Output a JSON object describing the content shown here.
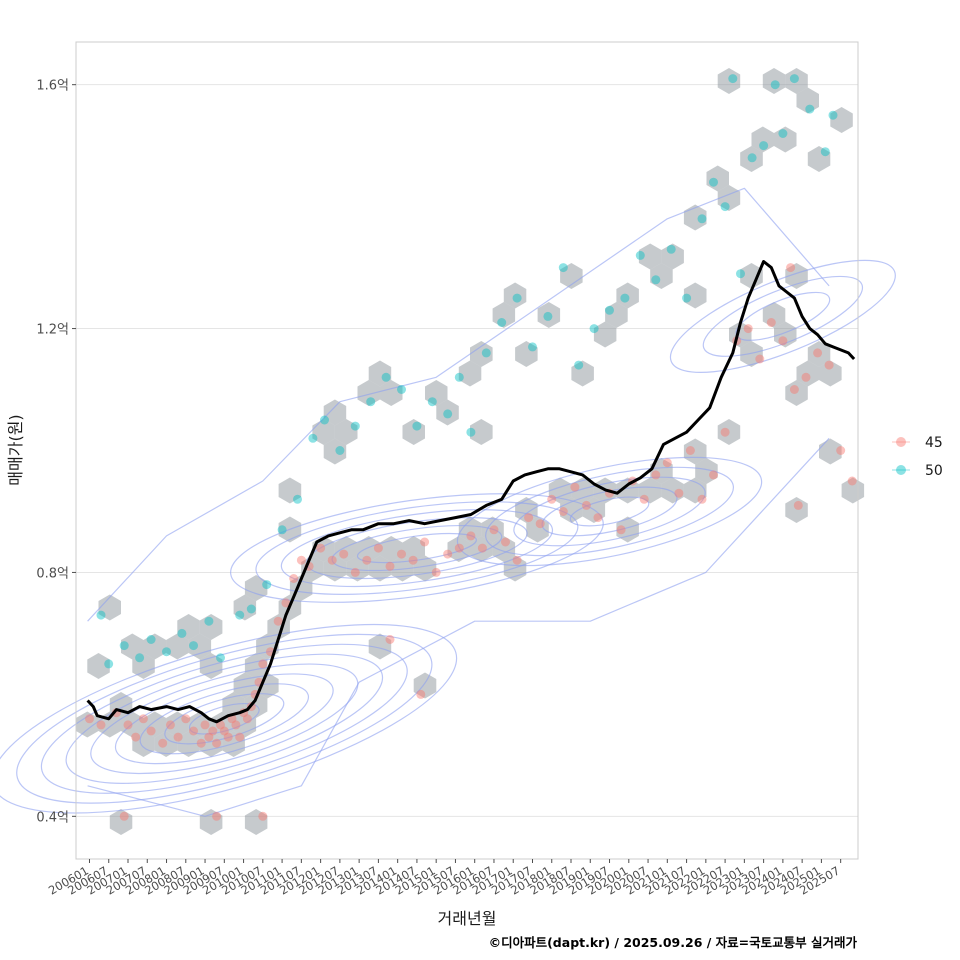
{
  "chart_data": {
    "type": "scatter",
    "overlays": [
      "hexbin",
      "density-contour",
      "moving-median-line"
    ],
    "xlabel": "거래년월",
    "ylabel": "매매가(원)",
    "ylim": [
      0.33,
      1.67
    ],
    "y_ticks": [
      {
        "value": 0.4,
        "label": "0.4억"
      },
      {
        "value": 0.8,
        "label": "0.8억"
      },
      {
        "value": 1.2,
        "label": "1.2억"
      },
      {
        "value": 1.6,
        "label": "1.6억"
      }
    ],
    "x_ticks": [
      "200601",
      "200607",
      "200701",
      "200707",
      "200801",
      "200807",
      "200901",
      "200907",
      "201001",
      "201007",
      "201101",
      "201107",
      "201201",
      "201207",
      "201301",
      "201307",
      "201401",
      "201407",
      "201501",
      "201507",
      "201601",
      "201607",
      "201701",
      "201707",
      "201801",
      "201807",
      "201901",
      "201907",
      "202001",
      "202007",
      "202101",
      "202107",
      "202201",
      "202207",
      "202301",
      "202307",
      "202401",
      "202407",
      "202501",
      "202507"
    ],
    "x_range_years": [
      2005.65,
      2025.95
    ],
    "legend": {
      "position": "right",
      "entries": [
        {
          "label": "45",
          "color": "#F8766D"
        },
        {
          "label": "50",
          "color": "#00BFC4"
        }
      ]
    },
    "colors": {
      "series_45": "#F8766D",
      "series_50": "#00BFC4",
      "hex_fill": "#8E959C",
      "contour": "#8EA0F0",
      "trend_line": "#000000",
      "grid": "#E5E5E5",
      "panel_border": "#CCCCCC"
    },
    "series": [
      {
        "name": "45",
        "points": [
          [
            2006.0,
            0.56
          ],
          [
            2006.3,
            0.55
          ],
          [
            2006.7,
            0.57
          ],
          [
            2007.0,
            0.55
          ],
          [
            2007.2,
            0.53
          ],
          [
            2007.4,
            0.56
          ],
          [
            2007.6,
            0.54
          ],
          [
            2007.9,
            0.52
          ],
          [
            2008.1,
            0.55
          ],
          [
            2008.3,
            0.53
          ],
          [
            2008.5,
            0.56
          ],
          [
            2008.7,
            0.54
          ],
          [
            2008.9,
            0.52
          ],
          [
            2009.0,
            0.55
          ],
          [
            2009.1,
            0.53
          ],
          [
            2009.2,
            0.54
          ],
          [
            2009.3,
            0.52
          ],
          [
            2009.4,
            0.55
          ],
          [
            2009.5,
            0.54
          ],
          [
            2009.6,
            0.53
          ],
          [
            2009.7,
            0.56
          ],
          [
            2009.8,
            0.55
          ],
          [
            2009.9,
            0.53
          ],
          [
            2010.0,
            0.57
          ],
          [
            2010.1,
            0.56
          ],
          [
            2010.2,
            0.58
          ],
          [
            2010.3,
            0.6
          ],
          [
            2010.4,
            0.62
          ],
          [
            2010.5,
            0.65
          ],
          [
            2010.7,
            0.67
          ],
          [
            2010.9,
            0.72
          ],
          [
            2011.1,
            0.75
          ],
          [
            2011.3,
            0.79
          ],
          [
            2011.5,
            0.82
          ],
          [
            2011.7,
            0.81
          ],
          [
            2012.0,
            0.84
          ],
          [
            2012.3,
            0.82
          ],
          [
            2012.6,
            0.83
          ],
          [
            2012.9,
            0.8
          ],
          [
            2013.2,
            0.82
          ],
          [
            2013.5,
            0.84
          ],
          [
            2013.8,
            0.81
          ],
          [
            2014.1,
            0.83
          ],
          [
            2014.4,
            0.82
          ],
          [
            2014.7,
            0.85
          ],
          [
            2015.0,
            0.8
          ],
          [
            2015.3,
            0.83
          ],
          [
            2015.6,
            0.84
          ],
          [
            2015.9,
            0.86
          ],
          [
            2016.2,
            0.84
          ],
          [
            2016.5,
            0.87
          ],
          [
            2016.8,
            0.85
          ],
          [
            2017.1,
            0.82
          ],
          [
            2017.4,
            0.89
          ],
          [
            2017.7,
            0.88
          ],
          [
            2018.0,
            0.92
          ],
          [
            2018.3,
            0.9
          ],
          [
            2018.6,
            0.94
          ],
          [
            2018.9,
            0.91
          ],
          [
            2019.2,
            0.89
          ],
          [
            2019.5,
            0.93
          ],
          [
            2019.8,
            0.87
          ],
          [
            2020.1,
            0.95
          ],
          [
            2020.4,
            0.92
          ],
          [
            2020.7,
            0.96
          ],
          [
            2021.0,
            0.98
          ],
          [
            2021.3,
            0.93
          ],
          [
            2021.6,
            1.0
          ],
          [
            2021.9,
            0.92
          ],
          [
            2022.2,
            0.96
          ],
          [
            2022.5,
            1.03
          ],
          [
            2022.8,
            1.18
          ],
          [
            2023.1,
            1.2
          ],
          [
            2023.4,
            1.15
          ],
          [
            2023.7,
            1.21
          ],
          [
            2024.0,
            1.18
          ],
          [
            2024.3,
            1.1
          ],
          [
            2024.6,
            1.12
          ],
          [
            2024.9,
            1.16
          ],
          [
            2025.2,
            1.14
          ],
          [
            2025.5,
            1.0
          ],
          [
            2025.8,
            0.95
          ],
          [
            2006.9,
            0.4
          ],
          [
            2009.3,
            0.4
          ],
          [
            2010.5,
            0.4
          ],
          [
            2013.8,
            0.69
          ],
          [
            2014.6,
            0.6
          ],
          [
            2024.4,
            0.91
          ],
          [
            2024.2,
            1.3
          ]
        ]
      },
      {
        "name": "50",
        "points": [
          [
            2006.3,
            0.73
          ],
          [
            2006.5,
            0.65
          ],
          [
            2006.9,
            0.68
          ],
          [
            2007.3,
            0.66
          ],
          [
            2007.6,
            0.69
          ],
          [
            2008.0,
            0.67
          ],
          [
            2008.4,
            0.7
          ],
          [
            2008.7,
            0.68
          ],
          [
            2009.1,
            0.72
          ],
          [
            2009.4,
            0.66
          ],
          [
            2009.9,
            0.73
          ],
          [
            2010.2,
            0.74
          ],
          [
            2010.6,
            0.78
          ],
          [
            2011.0,
            0.87
          ],
          [
            2011.4,
            0.92
          ],
          [
            2011.8,
            1.02
          ],
          [
            2012.1,
            1.05
          ],
          [
            2012.5,
            1.0
          ],
          [
            2012.9,
            1.04
          ],
          [
            2013.3,
            1.08
          ],
          [
            2013.7,
            1.12
          ],
          [
            2014.1,
            1.1
          ],
          [
            2014.5,
            1.04
          ],
          [
            2014.9,
            1.08
          ],
          [
            2015.3,
            1.06
          ],
          [
            2015.6,
            1.12
          ],
          [
            2015.9,
            1.03
          ],
          [
            2016.3,
            1.16
          ],
          [
            2016.7,
            1.21
          ],
          [
            2017.1,
            1.25
          ],
          [
            2017.5,
            1.17
          ],
          [
            2017.9,
            1.22
          ],
          [
            2018.3,
            1.3
          ],
          [
            2018.7,
            1.14
          ],
          [
            2019.1,
            1.2
          ],
          [
            2019.5,
            1.23
          ],
          [
            2019.9,
            1.25
          ],
          [
            2020.3,
            1.32
          ],
          [
            2020.7,
            1.28
          ],
          [
            2021.1,
            1.33
          ],
          [
            2021.5,
            1.25
          ],
          [
            2021.9,
            1.38
          ],
          [
            2022.2,
            1.44
          ],
          [
            2022.5,
            1.4
          ],
          [
            2022.9,
            1.29
          ],
          [
            2023.2,
            1.48
          ],
          [
            2023.5,
            1.5
          ],
          [
            2023.8,
            1.6
          ],
          [
            2024.0,
            1.52
          ],
          [
            2024.3,
            1.61
          ],
          [
            2024.7,
            1.56
          ],
          [
            2025.1,
            1.49
          ],
          [
            2025.3,
            1.55
          ],
          [
            2022.7,
            1.61
          ]
        ]
      }
    ],
    "trend_line": {
      "name": "moving median",
      "points": [
        [
          2005.95,
          0.59
        ],
        [
          2006.1,
          0.58
        ],
        [
          2006.2,
          0.565
        ],
        [
          2006.5,
          0.56
        ],
        [
          2006.7,
          0.575
        ],
        [
          2007.0,
          0.57
        ],
        [
          2007.3,
          0.58
        ],
        [
          2007.6,
          0.575
        ],
        [
          2008.0,
          0.58
        ],
        [
          2008.3,
          0.575
        ],
        [
          2008.6,
          0.58
        ],
        [
          2008.9,
          0.57
        ],
        [
          2009.1,
          0.56
        ],
        [
          2009.3,
          0.555
        ],
        [
          2009.6,
          0.565
        ],
        [
          2009.9,
          0.57
        ],
        [
          2010.1,
          0.575
        ],
        [
          2010.3,
          0.59
        ],
        [
          2010.5,
          0.62
        ],
        [
          2010.7,
          0.65
        ],
        [
          2010.9,
          0.69
        ],
        [
          2011.1,
          0.73
        ],
        [
          2011.3,
          0.76
        ],
        [
          2011.5,
          0.79
        ],
        [
          2011.7,
          0.82
        ],
        [
          2011.9,
          0.85
        ],
        [
          2012.2,
          0.86
        ],
        [
          2012.5,
          0.865
        ],
        [
          2012.8,
          0.87
        ],
        [
          2013.1,
          0.87
        ],
        [
          2013.5,
          0.88
        ],
        [
          2013.9,
          0.88
        ],
        [
          2014.3,
          0.885
        ],
        [
          2014.7,
          0.88
        ],
        [
          2015.1,
          0.885
        ],
        [
          2015.5,
          0.89
        ],
        [
          2015.9,
          0.895
        ],
        [
          2016.3,
          0.91
        ],
        [
          2016.7,
          0.92
        ],
        [
          2017.0,
          0.95
        ],
        [
          2017.3,
          0.96
        ],
        [
          2017.6,
          0.965
        ],
        [
          2017.9,
          0.97
        ],
        [
          2018.2,
          0.97
        ],
        [
          2018.5,
          0.965
        ],
        [
          2018.8,
          0.96
        ],
        [
          2019.1,
          0.945
        ],
        [
          2019.4,
          0.935
        ],
        [
          2019.7,
          0.93
        ],
        [
          2020.0,
          0.945
        ],
        [
          2020.3,
          0.955
        ],
        [
          2020.6,
          0.97
        ],
        [
          2020.9,
          1.01
        ],
        [
          2021.2,
          1.02
        ],
        [
          2021.5,
          1.03
        ],
        [
          2021.8,
          1.05
        ],
        [
          2022.1,
          1.07
        ],
        [
          2022.4,
          1.12
        ],
        [
          2022.7,
          1.16
        ],
        [
          2022.9,
          1.21
        ],
        [
          2023.1,
          1.25
        ],
        [
          2023.3,
          1.28
        ],
        [
          2023.5,
          1.31
        ],
        [
          2023.7,
          1.3
        ],
        [
          2023.9,
          1.27
        ],
        [
          2024.1,
          1.26
        ],
        [
          2024.3,
          1.25
        ],
        [
          2024.5,
          1.22
        ],
        [
          2024.7,
          1.2
        ],
        [
          2024.9,
          1.19
        ],
        [
          2025.1,
          1.175
        ],
        [
          2025.3,
          1.17
        ],
        [
          2025.5,
          1.165
        ],
        [
          2025.7,
          1.16
        ],
        [
          2025.85,
          1.15
        ]
      ]
    }
  },
  "caption": "©디아파트(dapt.kr) / 2025.09.26 / 자료=국토교통부 실거래가"
}
